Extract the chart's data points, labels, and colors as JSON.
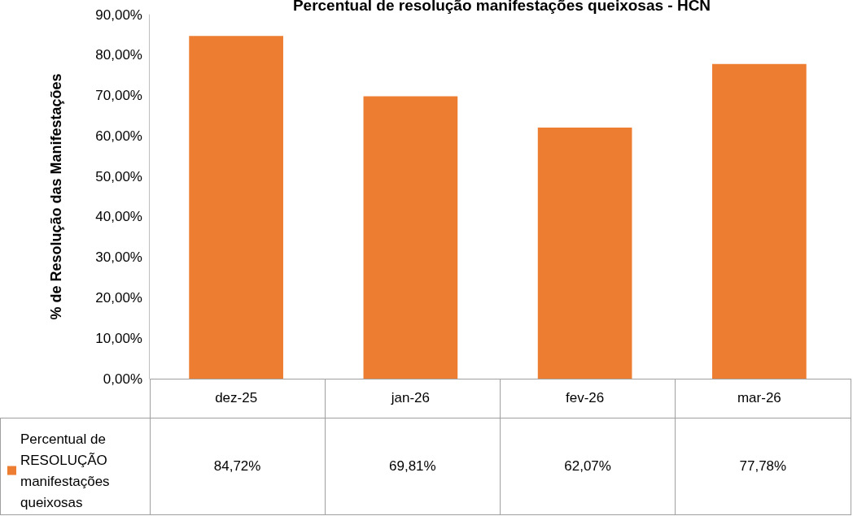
{
  "chart_data": {
    "type": "bar",
    "title": "Percentual de resolução manifestações queixosas - HCN",
    "ylabel": "% de Resolução das Manifestações",
    "categories": [
      "dez-25",
      "jan-26",
      "fev-26",
      "mar-26"
    ],
    "series": [
      {
        "name": "Percentual de RESOLUÇÃO manifestações queixosas",
        "color": "#ed7d31",
        "values": [
          84.72,
          69.81,
          62.07,
          77.78
        ],
        "value_labels": [
          "84,72%",
          "69,81%",
          "62,07%",
          "77,78%"
        ]
      }
    ],
    "ylim": [
      0,
      90
    ],
    "yticks": [
      {
        "value": 0,
        "label": "0,00%"
      },
      {
        "value": 10,
        "label": "10,00%"
      },
      {
        "value": 20,
        "label": "20,00%"
      },
      {
        "value": 30,
        "label": "30,00%"
      },
      {
        "value": 40,
        "label": "40,00%"
      },
      {
        "value": 50,
        "label": "50,00%"
      },
      {
        "value": 60,
        "label": "60,00%"
      },
      {
        "value": 70,
        "label": "70,00%"
      },
      {
        "value": 80,
        "label": "80,00%"
      },
      {
        "value": 90,
        "label": "90,00%"
      }
    ],
    "grid": false,
    "legend": "bottom left"
  }
}
